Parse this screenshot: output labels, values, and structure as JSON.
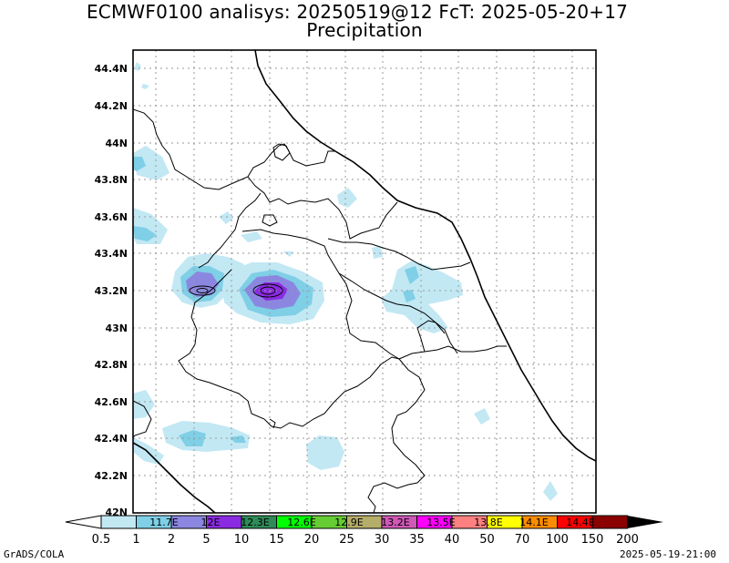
{
  "header": {
    "title_line1": "ECMWF0100 analisys: 20250519@12 FcT: 2025-05-20+17",
    "title_line2": "Precipitation"
  },
  "map": {
    "lat_ticks": [
      "44.4N",
      "44.2N",
      "44N",
      "43.8N",
      "43.6N",
      "43.4N",
      "43.2N",
      "43N",
      "42.8N",
      "42.6N",
      "42.4N",
      "42.2N",
      "42N"
    ],
    "grid": true,
    "grid_style": "dotted",
    "coastline_color": "#000000"
  },
  "colorbar": {
    "levels": [
      "0.5",
      "1",
      "2",
      "5",
      "10",
      "15",
      "20",
      "25",
      "30",
      "35",
      "40",
      "50",
      "70",
      "100",
      "150",
      "200"
    ],
    "colors": [
      "#c2e8f4",
      "#7fcfe6",
      "#8b87e0",
      "#8a2be2",
      "#2e8b57",
      "#00ff00",
      "#66cc33",
      "#b5ad6a",
      "#d058b7",
      "#ff00ff",
      "#ff8080",
      "#ffff00",
      "#ff8c00",
      "#ff0000",
      "#8b0000"
    ],
    "overlay_labels": [
      "11.7E",
      "12E",
      "12.3E",
      "12.6E",
      "12.9E",
      "13.2E",
      "13.5E",
      "13.8E",
      "14.1E",
      "14.4E"
    ]
  },
  "footer": {
    "left": "GrADS/COLA",
    "right": "2025-05-19-21:00"
  }
}
